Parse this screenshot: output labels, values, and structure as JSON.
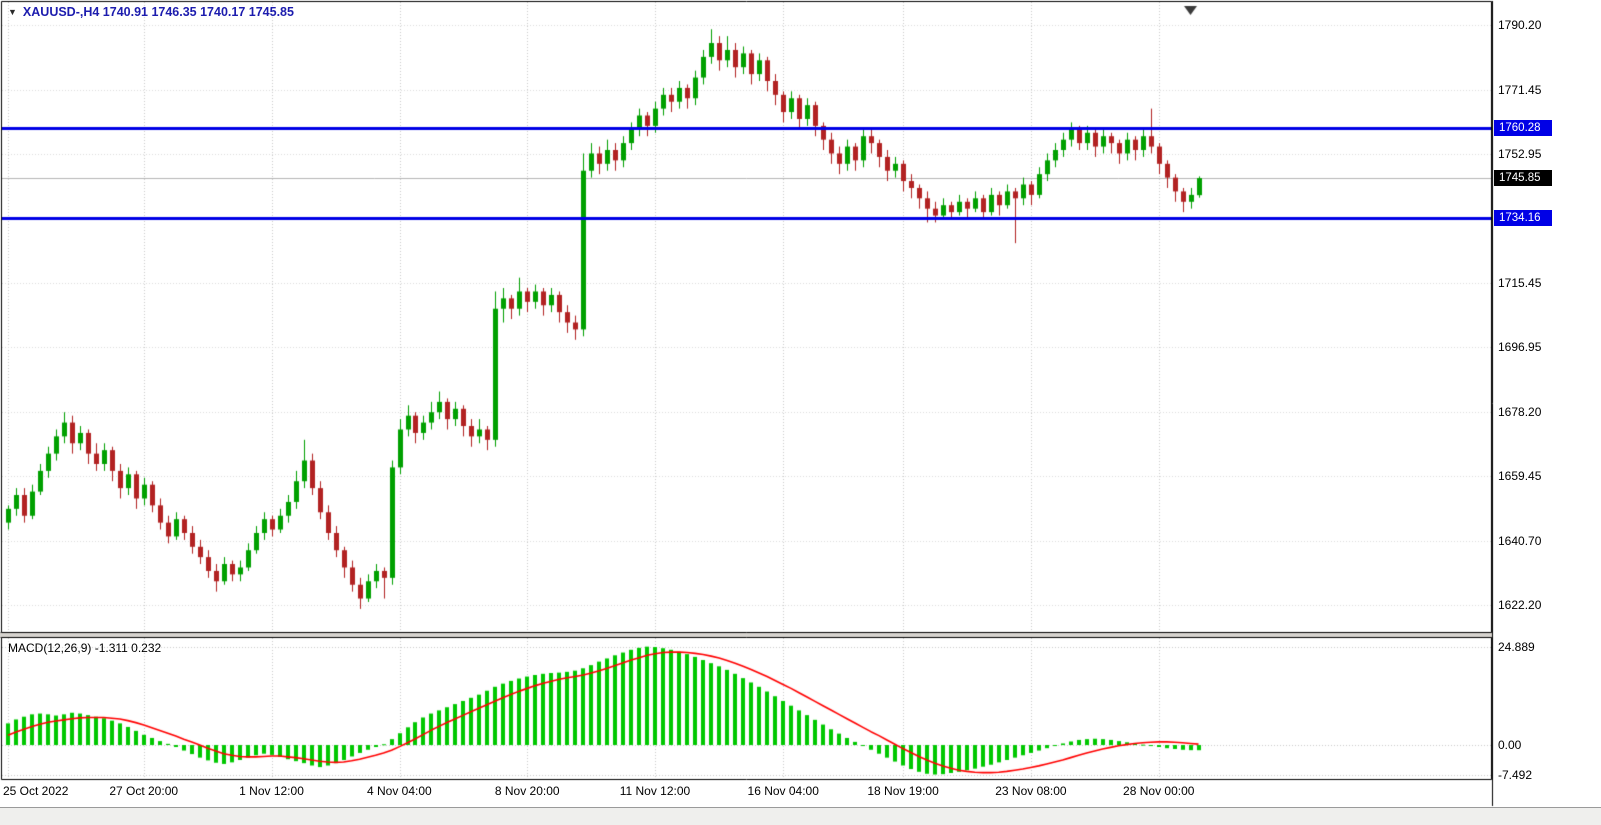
{
  "window": {
    "title_readout": "XAUUSD-,H4 1740.91 1746.35 1740.17 1745.85",
    "symbol_period": "XAUUSD-,H4"
  },
  "icons": {
    "dropdown_glyph": "▼"
  },
  "chart_data": {
    "type": "candlestick",
    "symbol": "XAUUSD-",
    "timeframe": "H4",
    "ohlc_readout": {
      "open": 1740.91,
      "high": 1746.35,
      "low": 1740.17,
      "close": 1745.85
    },
    "ylim": [
      1614.3,
      1796.9
    ],
    "price_ticks": [
      1790.2,
      1771.45,
      1752.95,
      1715.45,
      1696.95,
      1678.2,
      1659.45,
      1640.7,
      1622.2
    ],
    "current_price": 1745.85,
    "current_price_label": "1745.85",
    "hlines": [
      {
        "value": 1760.28,
        "label": "1760.28",
        "color": "#0000E6",
        "role": "resistance"
      },
      {
        "value": 1734.16,
        "label": "1734.16",
        "color": "#0000E6",
        "role": "support"
      }
    ],
    "time_ticks": [
      {
        "label": "25 Oct 2022",
        "i": 0
      },
      {
        "label": "27 Oct 20:00",
        "i": 17
      },
      {
        "label": "1 Nov 12:00",
        "i": 33
      },
      {
        "label": "4 Nov 04:00",
        "i": 49
      },
      {
        "label": "8 Nov 20:00",
        "i": 65
      },
      {
        "label": "11 Nov 12:00",
        "i": 81
      },
      {
        "label": "16 Nov 04:00",
        "i": 97
      },
      {
        "label": "18 Nov 19:00",
        "i": 112
      },
      {
        "label": "23 Nov 08:00",
        "i": 128
      },
      {
        "label": "28 Nov 00:00",
        "i": 144
      }
    ],
    "colors": {
      "bull": "#00A000",
      "bear": "#B22222",
      "macd_hist": "#00C800",
      "macd_signal": "#FF0000",
      "grid": "#C9C9C9",
      "current_line": "#B5B5B5",
      "tag_current_bg": "#000000"
    },
    "candles": [
      [
        1646,
        1651,
        1644,
        1650
      ],
      [
        1650,
        1656,
        1648,
        1654
      ],
      [
        1654,
        1656,
        1646,
        1648
      ],
      [
        1648,
        1657,
        1647,
        1655
      ],
      [
        1655,
        1663,
        1654,
        1661
      ],
      [
        1661,
        1668,
        1659,
        1666
      ],
      [
        1666,
        1673,
        1664,
        1671
      ],
      [
        1671,
        1678,
        1669,
        1675
      ],
      [
        1675,
        1677,
        1666,
        1669
      ],
      [
        1669,
        1674,
        1667,
        1672
      ],
      [
        1672,
        1673,
        1663,
        1666
      ],
      [
        1666,
        1669,
        1661,
        1663
      ],
      [
        1663,
        1669,
        1661,
        1667
      ],
      [
        1667,
        1668,
        1658,
        1661
      ],
      [
        1661,
        1663,
        1653,
        1656
      ],
      [
        1656,
        1662,
        1654,
        1660
      ],
      [
        1660,
        1661,
        1650,
        1653
      ],
      [
        1653,
        1659,
        1651,
        1657
      ],
      [
        1657,
        1658,
        1649,
        1651
      ],
      [
        1651,
        1653,
        1644,
        1646
      ],
      [
        1646,
        1648,
        1640,
        1642
      ],
      [
        1642,
        1649,
        1641,
        1647
      ],
      [
        1647,
        1648,
        1641,
        1643
      ],
      [
        1643,
        1645,
        1637,
        1639
      ],
      [
        1639,
        1641,
        1634,
        1636
      ],
      [
        1636,
        1638,
        1630,
        1632
      ],
      [
        1632,
        1634,
        1626,
        1629
      ],
      [
        1629,
        1636,
        1628,
        1634
      ],
      [
        1634,
        1635,
        1629,
        1631
      ],
      [
        1631,
        1635,
        1629,
        1633
      ],
      [
        1633,
        1640,
        1632,
        1638
      ],
      [
        1638,
        1645,
        1637,
        1643
      ],
      [
        1643,
        1649,
        1641,
        1647
      ],
      [
        1647,
        1648,
        1642,
        1644
      ],
      [
        1644,
        1650,
        1643,
        1648
      ],
      [
        1648,
        1654,
        1646,
        1652
      ],
      [
        1652,
        1661,
        1650,
        1658
      ],
      [
        1658,
        1670,
        1656,
        1664
      ],
      [
        1664,
        1666,
        1654,
        1656
      ],
      [
        1656,
        1658,
        1647,
        1649
      ],
      [
        1649,
        1651,
        1641,
        1643
      ],
      [
        1643,
        1645,
        1636,
        1638
      ],
      [
        1638,
        1639,
        1630,
        1633
      ],
      [
        1633,
        1635,
        1626,
        1628
      ],
      [
        1628,
        1630,
        1621,
        1624
      ],
      [
        1624,
        1631,
        1623,
        1629
      ],
      [
        1629,
        1634,
        1627,
        1632
      ],
      [
        1632,
        1633,
        1624,
        1630
      ],
      [
        1630,
        1664,
        1628,
        1662
      ],
      [
        1662,
        1676,
        1660,
        1673
      ],
      [
        1673,
        1680,
        1671,
        1677
      ],
      [
        1677,
        1678,
        1669,
        1672
      ],
      [
        1672,
        1677,
        1670,
        1675
      ],
      [
        1675,
        1681,
        1673,
        1678
      ],
      [
        1678,
        1684,
        1676,
        1681
      ],
      [
        1681,
        1682,
        1673,
        1676
      ],
      [
        1676,
        1681,
        1674,
        1679
      ],
      [
        1679,
        1680,
        1671,
        1674
      ],
      [
        1674,
        1676,
        1668,
        1671
      ],
      [
        1671,
        1676,
        1669,
        1673
      ],
      [
        1673,
        1674,
        1667,
        1670
      ],
      [
        1670,
        1713,
        1668,
        1708
      ],
      [
        1708,
        1714,
        1704,
        1711
      ],
      [
        1711,
        1712,
        1705,
        1708
      ],
      [
        1708,
        1717,
        1706,
        1713
      ],
      [
        1713,
        1714,
        1707,
        1710
      ],
      [
        1710,
        1715,
        1708,
        1713
      ],
      [
        1713,
        1714,
        1706,
        1709
      ],
      [
        1709,
        1714,
        1707,
        1712
      ],
      [
        1712,
        1713,
        1704,
        1707
      ],
      [
        1707,
        1709,
        1701,
        1704
      ],
      [
        1704,
        1706,
        1699,
        1702
      ],
      [
        1702,
        1753,
        1700,
        1748
      ],
      [
        1748,
        1756,
        1746,
        1753
      ],
      [
        1753,
        1755,
        1747,
        1750
      ],
      [
        1750,
        1757,
        1748,
        1754
      ],
      [
        1754,
        1756,
        1748,
        1751
      ],
      [
        1751,
        1758,
        1749,
        1756
      ],
      [
        1756,
        1762,
        1754,
        1760
      ],
      [
        1760,
        1766,
        1758,
        1764
      ],
      [
        1764,
        1765,
        1758,
        1761
      ],
      [
        1761,
        1768,
        1759,
        1766
      ],
      [
        1766,
        1772,
        1764,
        1770
      ],
      [
        1770,
        1772,
        1765,
        1768
      ],
      [
        1768,
        1774,
        1766,
        1772
      ],
      [
        1772,
        1773,
        1766,
        1769
      ],
      [
        1769,
        1777,
        1767,
        1775
      ],
      [
        1775,
        1783,
        1773,
        1781
      ],
      [
        1781,
        1789,
        1779,
        1785
      ],
      [
        1785,
        1787,
        1777,
        1780
      ],
      [
        1780,
        1787,
        1778,
        1783
      ],
      [
        1783,
        1785,
        1775,
        1778
      ],
      [
        1778,
        1784,
        1776,
        1782
      ],
      [
        1782,
        1783,
        1773,
        1776
      ],
      [
        1776,
        1782,
        1774,
        1780
      ],
      [
        1780,
        1781,
        1771,
        1774
      ],
      [
        1774,
        1776,
        1767,
        1770
      ],
      [
        1770,
        1771,
        1762,
        1765
      ],
      [
        1765,
        1771,
        1763,
        1769
      ],
      [
        1769,
        1770,
        1760,
        1763
      ],
      [
        1763,
        1769,
        1761,
        1767
      ],
      [
        1767,
        1768,
        1758,
        1761
      ],
      [
        1761,
        1762,
        1754,
        1757
      ],
      [
        1757,
        1759,
        1750,
        1753
      ],
      [
        1753,
        1755,
        1747,
        1750
      ],
      [
        1750,
        1757,
        1748,
        1755
      ],
      [
        1755,
        1756,
        1748,
        1751
      ],
      [
        1751,
        1760,
        1749,
        1758
      ],
      [
        1758,
        1760,
        1753,
        1756
      ],
      [
        1756,
        1757,
        1749,
        1752
      ],
      [
        1752,
        1754,
        1745,
        1748
      ],
      [
        1748,
        1752,
        1746,
        1750
      ],
      [
        1750,
        1751,
        1742,
        1745
      ],
      [
        1745,
        1747,
        1740,
        1743
      ],
      [
        1743,
        1744,
        1737,
        1740
      ],
      [
        1740,
        1742,
        1733,
        1737
      ],
      [
        1737,
        1739,
        1733,
        1735
      ],
      [
        1735,
        1740,
        1734,
        1738
      ],
      [
        1738,
        1739,
        1734,
        1736
      ],
      [
        1736,
        1741,
        1735,
        1739
      ],
      [
        1739,
        1740,
        1734,
        1737
      ],
      [
        1737,
        1742,
        1736,
        1740
      ],
      [
        1740,
        1741,
        1734,
        1736
      ],
      [
        1736,
        1743,
        1735,
        1741
      ],
      [
        1741,
        1742,
        1735,
        1738
      ],
      [
        1738,
        1744,
        1737,
        1742
      ],
      [
        1742,
        1743,
        1727,
        1740
      ],
      [
        1740,
        1746,
        1738,
        1744
      ],
      [
        1744,
        1745,
        1738,
        1741
      ],
      [
        1741,
        1749,
        1740,
        1747
      ],
      [
        1747,
        1753,
        1745,
        1751
      ],
      [
        1751,
        1756,
        1749,
        1754
      ],
      [
        1754,
        1759,
        1752,
        1757
      ],
      [
        1757,
        1762,
        1755,
        1760
      ],
      [
        1760,
        1761,
        1754,
        1756
      ],
      [
        1756,
        1761,
        1754,
        1759
      ],
      [
        1759,
        1760,
        1752,
        1755
      ],
      [
        1755,
        1760,
        1753,
        1758
      ],
      [
        1758,
        1759,
        1753,
        1756
      ],
      [
        1756,
        1757,
        1750,
        1753
      ],
      [
        1753,
        1759,
        1751,
        1757
      ],
      [
        1757,
        1758,
        1751,
        1754
      ],
      [
        1754,
        1760,
        1752,
        1758
      ],
      [
        1758,
        1766,
        1753,
        1755
      ],
      [
        1755,
        1756,
        1747,
        1750
      ],
      [
        1750,
        1751,
        1743,
        1746
      ],
      [
        1746,
        1747,
        1739,
        1742
      ],
      [
        1742,
        1743,
        1736,
        1739
      ],
      [
        1739,
        1743,
        1737,
        1741
      ],
      [
        1740.91,
        1746.35,
        1740.17,
        1745.85
      ]
    ],
    "macd": {
      "readout": "MACD(12,26,9) -1.311 0.232",
      "label": "MACD(12,26,9)",
      "main_value": -1.311,
      "signal_value": 0.232,
      "ticks": [
        {
          "value": 24.889,
          "label": "24.889"
        },
        {
          "value": 0,
          "label": "0.00"
        },
        {
          "value": -7.492,
          "label": "-7.492"
        }
      ],
      "ylim": [
        -8.63,
        27.2
      ],
      "hist": [
        5.5,
        6.5,
        7.2,
        7.8,
        8.0,
        7.8,
        7.5,
        7.8,
        8.2,
        8.0,
        7.6,
        7.2,
        6.8,
        6.2,
        5.5,
        4.6,
        3.6,
        2.6,
        1.8,
        1.0,
        0.3,
        -0.5,
        -1.4,
        -2.3,
        -3.2,
        -3.9,
        -4.5,
        -4.8,
        -4.4,
        -3.8,
        -3.2,
        -2.6,
        -2.2,
        -2.5,
        -3.0,
        -3.6,
        -4.1,
        -4.6,
        -5.2,
        -5.6,
        -5.2,
        -4.6,
        -3.8,
        -2.9,
        -2.0,
        -1.2,
        -0.5,
        0.2,
        1.5,
        3.0,
        4.5,
        5.8,
        7.0,
        8.0,
        8.8,
        9.6,
        10.4,
        11.2,
        12.0,
        12.8,
        13.8,
        14.8,
        15.6,
        16.3,
        16.9,
        17.4,
        17.8,
        18.1,
        18.3,
        18.4,
        18.6,
        18.9,
        19.5,
        20.3,
        21.2,
        22.0,
        22.8,
        23.5,
        24.2,
        24.7,
        25.0,
        24.9,
        24.6,
        24.2,
        23.7,
        23.1,
        22.4,
        21.6,
        20.8,
        20.0,
        19.1,
        18.1,
        17.0,
        15.9,
        14.8,
        13.6,
        12.4,
        11.2,
        10.0,
        8.8,
        7.6,
        6.4,
        5.2,
        4.0,
        2.9,
        1.8,
        0.8,
        -0.2,
        -1.2,
        -2.2,
        -3.2,
        -4.2,
        -5.2,
        -6.1,
        -6.8,
        -7.3,
        -7.492,
        -7.4,
        -7.1,
        -6.8,
        -6.4,
        -6.0,
        -5.5,
        -5.0,
        -4.4,
        -3.8,
        -3.2,
        -2.6,
        -2.0,
        -1.4,
        -0.8,
        -0.2,
        0.4,
        0.9,
        1.3,
        1.5,
        1.6,
        1.5,
        1.3,
        1.0,
        0.7,
        0.4,
        0.1,
        -0.2,
        -0.5,
        -0.8,
        -1.0,
        -1.2,
        -1.3,
        -1.311
      ],
      "signal": [
        2.5,
        3.3,
        4.0,
        4.7,
        5.3,
        5.8,
        6.1,
        6.4,
        6.7,
        6.9,
        7.0,
        7.0,
        7.0,
        6.8,
        6.6,
        6.2,
        5.7,
        5.1,
        4.4,
        3.7,
        3.0,
        2.3,
        1.5,
        0.8,
        0.0,
        -0.8,
        -1.5,
        -2.2,
        -2.6,
        -2.9,
        -3.0,
        -3.0,
        -2.9,
        -2.8,
        -2.8,
        -3.0,
        -3.2,
        -3.5,
        -3.8,
        -4.1,
        -4.3,
        -4.4,
        -4.3,
        -4.0,
        -3.6,
        -3.1,
        -2.6,
        -2.0,
        -1.3,
        -0.4,
        0.6,
        1.6,
        2.7,
        3.8,
        4.8,
        5.8,
        6.7,
        7.6,
        8.5,
        9.4,
        10.3,
        11.2,
        12.1,
        12.9,
        13.7,
        14.4,
        15.1,
        15.7,
        16.2,
        16.7,
        17.1,
        17.4,
        17.8,
        18.3,
        18.9,
        19.5,
        20.2,
        20.9,
        21.6,
        22.2,
        22.8,
        23.2,
        23.5,
        23.6,
        23.6,
        23.5,
        23.3,
        23.0,
        22.6,
        22.1,
        21.5,
        20.8,
        20.0,
        19.2,
        18.3,
        17.4,
        16.4,
        15.4,
        14.4,
        13.3,
        12.2,
        11.1,
        10.0,
        8.9,
        7.8,
        6.7,
        5.6,
        4.5,
        3.4,
        2.4,
        1.3,
        0.2,
        -0.9,
        -1.9,
        -2.9,
        -3.8,
        -4.6,
        -5.3,
        -5.9,
        -6.4,
        -6.7,
        -6.9,
        -7.0,
        -7.0,
        -6.9,
        -6.7,
        -6.4,
        -6.1,
        -5.7,
        -5.3,
        -4.8,
        -4.3,
        -3.8,
        -3.2,
        -2.6,
        -2.0,
        -1.5,
        -1.0,
        -0.6,
        -0.2,
        0.1,
        0.4,
        0.6,
        0.7,
        0.8,
        0.8,
        0.7,
        0.6,
        0.4,
        0.232
      ]
    }
  }
}
